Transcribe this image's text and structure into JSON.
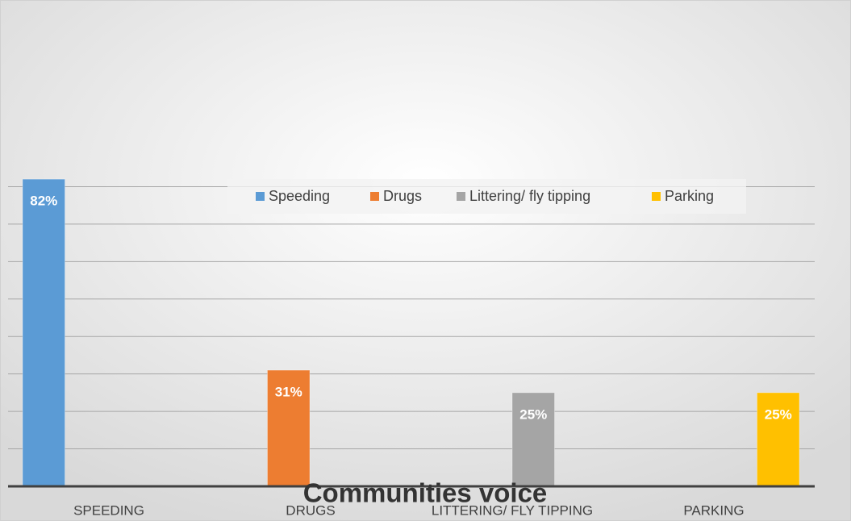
{
  "chart_data": {
    "type": "bar",
    "title": "Communities voice",
    "categories": [
      "SPEEDING",
      "DRUGS",
      "LITTERING/ FLY TIPPING",
      "PARKING"
    ],
    "series": [
      {
        "name": "Speeding",
        "color": "#5b9bd5",
        "values": [
          82,
          null,
          null,
          null
        ],
        "value_labels": [
          "82%",
          null,
          null,
          null
        ]
      },
      {
        "name": "Drugs",
        "color": "#ed7d31",
        "values": [
          null,
          31,
          null,
          null
        ],
        "value_labels": [
          null,
          "31%",
          null,
          null
        ]
      },
      {
        "name": "Littering/ fly tipping",
        "color": "#a5a5a5",
        "values": [
          null,
          null,
          25,
          null
        ],
        "value_labels": [
          null,
          null,
          "25%",
          null
        ]
      },
      {
        "name": "Parking",
        "color": "#ffc000",
        "values": [
          null,
          null,
          null,
          25
        ],
        "value_labels": [
          null,
          null,
          null,
          "25%"
        ]
      }
    ],
    "ylim": [
      0,
      90
    ],
    "yticks": [
      0,
      10,
      20,
      30,
      40,
      50,
      60,
      70,
      80
    ],
    "grid": true,
    "legend": "top"
  }
}
